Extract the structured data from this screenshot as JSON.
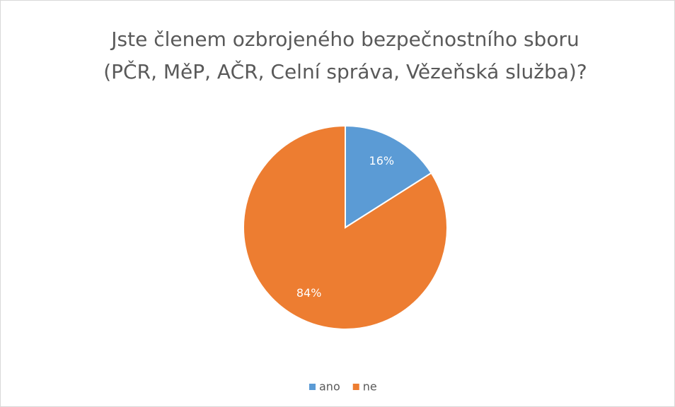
{
  "chart_data": {
    "type": "pie",
    "title": [
      "Jste členem ozbrojeného bezpečnostního sboru",
      "(PČR, MěP, AČR, Celní správa, Vězeňská služba)?"
    ],
    "categories": [
      "ano",
      "ne"
    ],
    "values": [
      16,
      84
    ],
    "value_labels": [
      "16%",
      "84%"
    ],
    "colors": [
      "#5b9bd5",
      "#ed7d31"
    ],
    "legend": "bottom"
  }
}
